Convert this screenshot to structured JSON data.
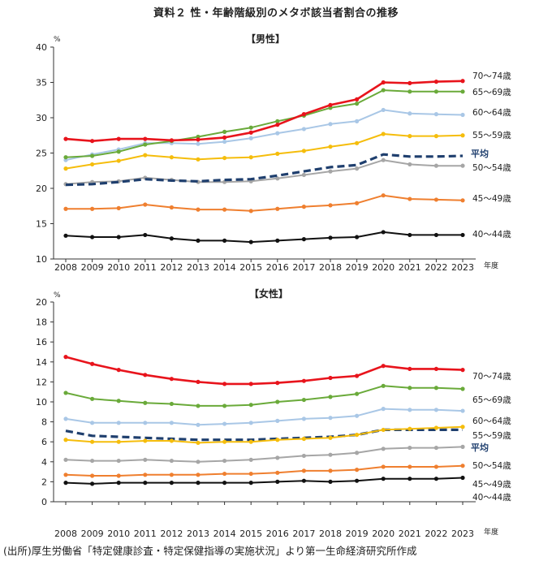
{
  "page_title": "資料２ 性・年齢階級別のメタボ該当者割合の推移",
  "source_note": "(出所)厚生労働省「特定健康診査・特定保健指導の実施状況」より第一生命経済研究所作成",
  "colors": {
    "70-74": "#e8141c",
    "65-69": "#6aaa3a",
    "60-64": "#a9c7e6",
    "55-59": "#f5bd0c",
    "avg": "#1f3f6e",
    "50-54": "#a6a6a6",
    "45-49": "#ef7f2f",
    "40-44": "#111111"
  },
  "chart_data": [
    {
      "type": "line",
      "subtitle": "【男性】",
      "y_unit": "%",
      "x_unit": "年度",
      "ylim": [
        10,
        40
      ],
      "yticks": [
        "10",
        "15",
        "20",
        "25",
        "30",
        "35",
        "40"
      ],
      "categories": [
        "2008",
        "2009",
        "2010",
        "2011",
        "2012",
        "2013",
        "2014",
        "2015",
        "2016",
        "2017",
        "2018",
        "2019",
        "2020",
        "2021",
        "2022",
        "2023"
      ],
      "grid": false,
      "series": [
        {
          "key": "70-74",
          "name": "70～74歳",
          "values": [
            27.0,
            26.7,
            27.0,
            27.0,
            26.8,
            26.9,
            27.2,
            27.9,
            29.0,
            30.5,
            31.8,
            32.6,
            35.0,
            34.9,
            35.1,
            35.2
          ]
        },
        {
          "key": "65-69",
          "name": "65～69歳",
          "values": [
            24.4,
            24.6,
            25.2,
            26.2,
            26.7,
            27.3,
            28.0,
            28.6,
            29.5,
            30.3,
            31.4,
            32.0,
            33.9,
            33.7,
            33.7,
            33.7
          ]
        },
        {
          "key": "60-64",
          "name": "60～64歳",
          "values": [
            24.0,
            24.8,
            25.5,
            26.4,
            26.4,
            26.3,
            26.6,
            27.1,
            27.8,
            28.4,
            29.1,
            29.5,
            31.1,
            30.6,
            30.5,
            30.4
          ]
        },
        {
          "key": "55-59",
          "name": "55～59歳",
          "values": [
            22.8,
            23.4,
            23.9,
            24.7,
            24.4,
            24.1,
            24.3,
            24.4,
            24.9,
            25.3,
            25.9,
            26.4,
            27.7,
            27.4,
            27.4,
            27.5
          ]
        },
        {
          "key": "avg",
          "name": "平均",
          "dashed": true,
          "values": [
            20.5,
            20.6,
            20.9,
            21.3,
            21.1,
            21.0,
            21.2,
            21.3,
            21.8,
            22.4,
            23.0,
            23.3,
            24.8,
            24.5,
            24.5,
            24.6
          ]
        },
        {
          "key": "50-54",
          "name": "50～54歳",
          "values": [
            20.6,
            20.9,
            21.0,
            21.5,
            21.2,
            20.9,
            20.9,
            21.0,
            21.4,
            21.9,
            22.4,
            22.8,
            24.0,
            23.4,
            23.2,
            23.2
          ]
        },
        {
          "key": "45-49",
          "name": "45～49歳",
          "values": [
            17.1,
            17.1,
            17.2,
            17.7,
            17.3,
            17.0,
            17.0,
            16.8,
            17.1,
            17.4,
            17.6,
            17.9,
            19.0,
            18.5,
            18.4,
            18.3
          ]
        },
        {
          "key": "40-44",
          "name": "40～44歳",
          "values": [
            13.3,
            13.1,
            13.1,
            13.4,
            12.9,
            12.6,
            12.6,
            12.4,
            12.6,
            12.8,
            13.0,
            13.1,
            13.8,
            13.4,
            13.4,
            13.4
          ]
        }
      ]
    },
    {
      "type": "line",
      "subtitle": "【女性】",
      "y_unit": "%",
      "x_unit": "年度",
      "ylim": [
        0,
        20
      ],
      "yticks": [
        "0",
        "2",
        "4",
        "6",
        "8",
        "10",
        "12",
        "14",
        "16",
        "18",
        "20"
      ],
      "categories": [
        "2008",
        "2009",
        "2010",
        "2011",
        "2012",
        "2013",
        "2014",
        "2015",
        "2016",
        "2017",
        "2018",
        "2019",
        "2020",
        "2021",
        "2022",
        "2023"
      ],
      "grid": false,
      "series": [
        {
          "key": "70-74",
          "name": "70～74歳",
          "values": [
            14.5,
            13.8,
            13.2,
            12.7,
            12.3,
            12.0,
            11.8,
            11.8,
            11.9,
            12.1,
            12.4,
            12.6,
            13.6,
            13.3,
            13.3,
            13.2
          ]
        },
        {
          "key": "65-69",
          "name": "65～69歳",
          "values": [
            10.9,
            10.3,
            10.1,
            9.9,
            9.8,
            9.6,
            9.6,
            9.7,
            10.0,
            10.2,
            10.5,
            10.8,
            11.6,
            11.4,
            11.4,
            11.3
          ]
        },
        {
          "key": "60-64",
          "name": "60～64歳",
          "values": [
            8.3,
            7.9,
            7.9,
            7.9,
            7.9,
            7.7,
            7.8,
            7.9,
            8.1,
            8.3,
            8.4,
            8.6,
            9.3,
            9.2,
            9.2,
            9.1
          ]
        },
        {
          "key": "55-59",
          "name": "55～59歳",
          "values": [
            6.2,
            6.0,
            6.0,
            6.1,
            6.1,
            5.9,
            6.0,
            6.0,
            6.2,
            6.3,
            6.4,
            6.7,
            7.2,
            7.3,
            7.4,
            7.5
          ]
        },
        {
          "key": "avg",
          "name": "平均",
          "dashed": true,
          "values": [
            7.1,
            6.6,
            6.5,
            6.4,
            6.3,
            6.2,
            6.2,
            6.2,
            6.3,
            6.4,
            6.5,
            6.7,
            7.2,
            7.2,
            7.2,
            7.2
          ]
        },
        {
          "key": "50-54",
          "name": "50～54歳",
          "values": [
            4.2,
            4.1,
            4.1,
            4.2,
            4.1,
            4.0,
            4.1,
            4.2,
            4.4,
            4.6,
            4.7,
            4.9,
            5.3,
            5.4,
            5.4,
            5.5
          ]
        },
        {
          "key": "45-49",
          "name": "45～49歳",
          "values": [
            2.7,
            2.6,
            2.6,
            2.7,
            2.7,
            2.7,
            2.8,
            2.8,
            2.9,
            3.1,
            3.1,
            3.2,
            3.5,
            3.5,
            3.5,
            3.6
          ]
        },
        {
          "key": "40-44",
          "name": "40～44歳",
          "values": [
            1.9,
            1.8,
            1.9,
            1.9,
            1.9,
            1.9,
            1.9,
            1.9,
            2.0,
            2.1,
            2.0,
            2.1,
            2.3,
            2.3,
            2.3,
            2.4
          ]
        }
      ]
    }
  ]
}
